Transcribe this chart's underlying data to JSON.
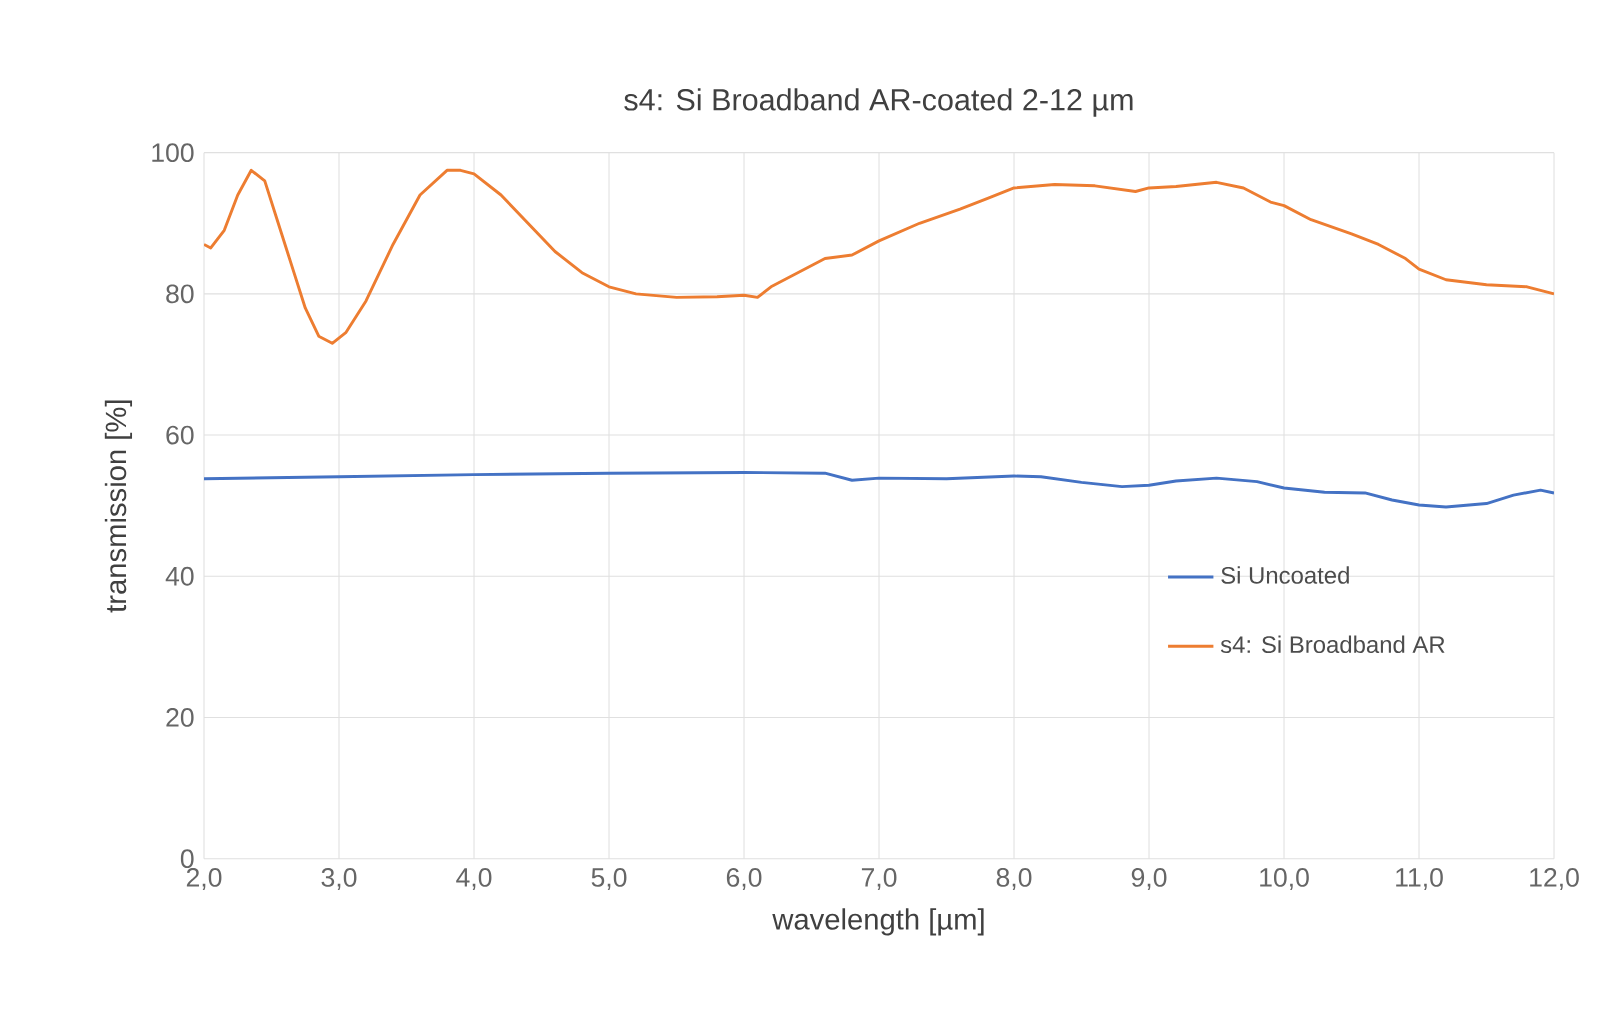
{
  "chart_data": {
    "type": "line",
    "title": "s4: Si Broadband AR-coated 2-12 µm",
    "xlabel": "wavelength [µm]",
    "ylabel": "transmission [%]",
    "xlim": [
      2,
      12
    ],
    "ylim": [
      0,
      100
    ],
    "xticks": [
      {
        "value": 2,
        "label": "2,0"
      },
      {
        "value": 3,
        "label": "3,0"
      },
      {
        "value": 4,
        "label": "4,0"
      },
      {
        "value": 5,
        "label": "5,0"
      },
      {
        "value": 6,
        "label": "6,0"
      },
      {
        "value": 7,
        "label": "7,0"
      },
      {
        "value": 8,
        "label": "8,0"
      },
      {
        "value": 9,
        "label": "9,0"
      },
      {
        "value": 10,
        "label": "10,0"
      },
      {
        "value": 11,
        "label": "11,0"
      },
      {
        "value": 12,
        "label": "12,0"
      }
    ],
    "yticks": [
      0,
      20,
      40,
      60,
      80,
      100
    ],
    "grid": true,
    "legend": "right",
    "marker": "none",
    "line_style": "solid",
    "series": [
      {
        "name": "Si Uncoated",
        "color": "#4472c4",
        "x": [
          2.0,
          3.0,
          4.0,
          5.0,
          6.0,
          6.6,
          6.8,
          7.0,
          7.5,
          8.0,
          8.2,
          8.5,
          8.8,
          9.0,
          9.2,
          9.5,
          9.8,
          10.0,
          10.3,
          10.6,
          10.8,
          11.0,
          11.2,
          11.5,
          11.7,
          11.9,
          12.0
        ],
        "values": [
          53.8,
          54.1,
          54.4,
          54.6,
          54.7,
          54.6,
          53.6,
          53.9,
          53.8,
          54.2,
          54.1,
          53.3,
          52.7,
          52.9,
          53.5,
          53.9,
          53.4,
          52.5,
          51.9,
          51.8,
          50.8,
          50.1,
          49.8,
          50.3,
          51.5,
          52.2,
          51.8
        ]
      },
      {
        "name": "s4: Si Broadband AR",
        "color": "#ed7d31",
        "x": [
          2.0,
          2.05,
          2.15,
          2.25,
          2.35,
          2.45,
          2.55,
          2.65,
          2.75,
          2.85,
          2.95,
          3.05,
          3.2,
          3.4,
          3.6,
          3.8,
          3.9,
          4.0,
          4.2,
          4.4,
          4.6,
          4.8,
          5.0,
          5.2,
          5.5,
          5.8,
          6.0,
          6.1,
          6.2,
          6.4,
          6.6,
          6.8,
          7.0,
          7.3,
          7.6,
          7.8,
          8.0,
          8.3,
          8.6,
          8.9,
          9.0,
          9.2,
          9.5,
          9.7,
          9.9,
          10.0,
          10.2,
          10.5,
          10.7,
          10.9,
          11.0,
          11.2,
          11.5,
          11.8,
          12.0
        ],
        "values": [
          87,
          86.5,
          89,
          94,
          97.5,
          96,
          90,
          84,
          78,
          74,
          73,
          74.5,
          79,
          87,
          94,
          97.5,
          97.5,
          97,
          94,
          90,
          86,
          83,
          81,
          80,
          79.5,
          79.6,
          79.8,
          79.5,
          81,
          83,
          85,
          85.5,
          87.5,
          90,
          92,
          93.5,
          95,
          95.5,
          95.3,
          94.5,
          95,
          95.2,
          95.8,
          95,
          93,
          92.5,
          90.5,
          88.5,
          87,
          85,
          83.5,
          82,
          81.3,
          81,
          80
        ]
      }
    ]
  }
}
